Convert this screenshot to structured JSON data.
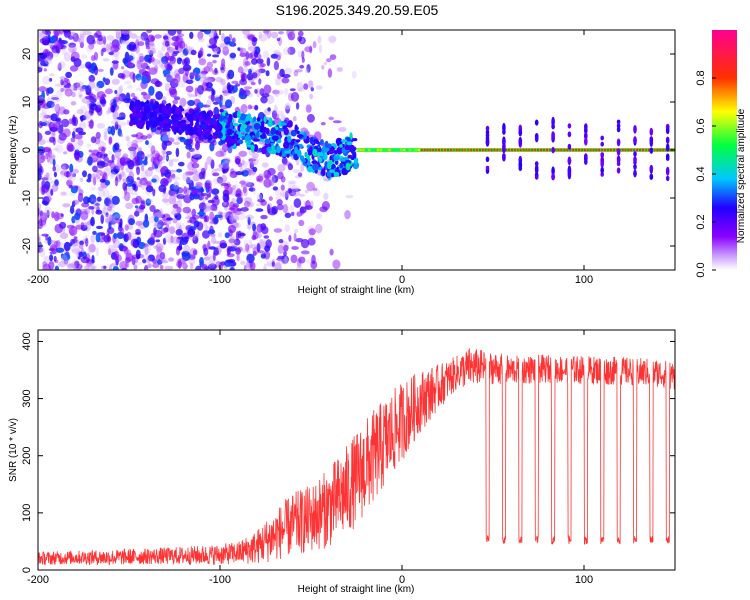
{
  "page_title": "S196.2025.349.20.59.E05",
  "chart_data": [
    {
      "type": "heatmap",
      "title": "S196.2025.349.20.59.E05",
      "xlabel": "Height of straight line (km)",
      "ylabel": "Frequency (Hz)",
      "xlim": [
        -200,
        150
      ],
      "ylim": [
        -25,
        25
      ],
      "x_ticks": [
        "-200",
        "-100",
        "0",
        "100"
      ],
      "x_tick_values": [
        -200,
        -100,
        0,
        100
      ],
      "y_ticks": [
        "-20",
        "-10",
        "0",
        "10",
        "20"
      ],
      "y_tick_values": [
        -20,
        -10,
        0,
        10,
        20
      ],
      "colorbar": {
        "label": "Normalized spectral amplitude",
        "ticks": [
          "0.0",
          "0.2",
          "0.4",
          "0.6",
          "0.8"
        ],
        "tick_values": [
          0.0,
          0.2,
          0.4,
          0.6,
          0.8
        ],
        "range": [
          0,
          1
        ],
        "colormap": [
          "#ffffff",
          "#8a00ff",
          "#2000ff",
          "#00c8ff",
          "#00ff40",
          "#ffff00",
          "#ff3000",
          "#ff0080"
        ]
      },
      "features": {
        "noise_region_x": [
          -200,
          -55
        ],
        "transition_region_x": [
          -95,
          -25
        ],
        "carrier_start_x": -25,
        "carrier_frequency_hz": 0,
        "carrier_dips_x": [
          47,
          56,
          65,
          74,
          83,
          92,
          101,
          110,
          119,
          128,
          137,
          146
        ]
      }
    },
    {
      "type": "line",
      "xlabel": "Height of straight line (km)",
      "ylabel": "SNR (10 * v/v)",
      "xlim": [
        -200,
        150
      ],
      "ylim": [
        0,
        420
      ],
      "x_ticks": [
        "-200",
        "-100",
        "0",
        "100"
      ],
      "x_tick_values": [
        -200,
        -100,
        0,
        100
      ],
      "y_ticks": [
        "0",
        "100",
        "200",
        "300",
        "400"
      ],
      "y_tick_values": [
        0,
        100,
        200,
        300,
        400
      ],
      "series": [
        {
          "name": "SNR",
          "color": "#ff3333",
          "x": [
            -200,
            -180,
            -160,
            -140,
            -120,
            -100,
            -90,
            -80,
            -70,
            -60,
            -50,
            -40,
            -30,
            -20,
            -10,
            0,
            10,
            20,
            30,
            37,
            45,
            60,
            80,
            100,
            120,
            140,
            150
          ],
          "values": [
            20,
            22,
            22,
            24,
            25,
            27,
            30,
            40,
            60,
            80,
            90,
            110,
            140,
            180,
            220,
            260,
            295,
            320,
            345,
            355,
            355,
            350,
            352,
            350,
            348,
            345,
            340
          ],
          "noise_amplitude": [
            12,
            12,
            14,
            14,
            16,
            18,
            20,
            30,
            45,
            55,
            60,
            70,
            80,
            85,
            80,
            70,
            55,
            40,
            30,
            35,
            30,
            25,
            25,
            25,
            25,
            25,
            25
          ]
        }
      ],
      "dropouts": {
        "x": [
          47,
          56,
          65,
          74,
          83,
          92,
          101,
          110,
          119,
          128,
          137,
          146
        ],
        "min_value": 45
      }
    }
  ]
}
